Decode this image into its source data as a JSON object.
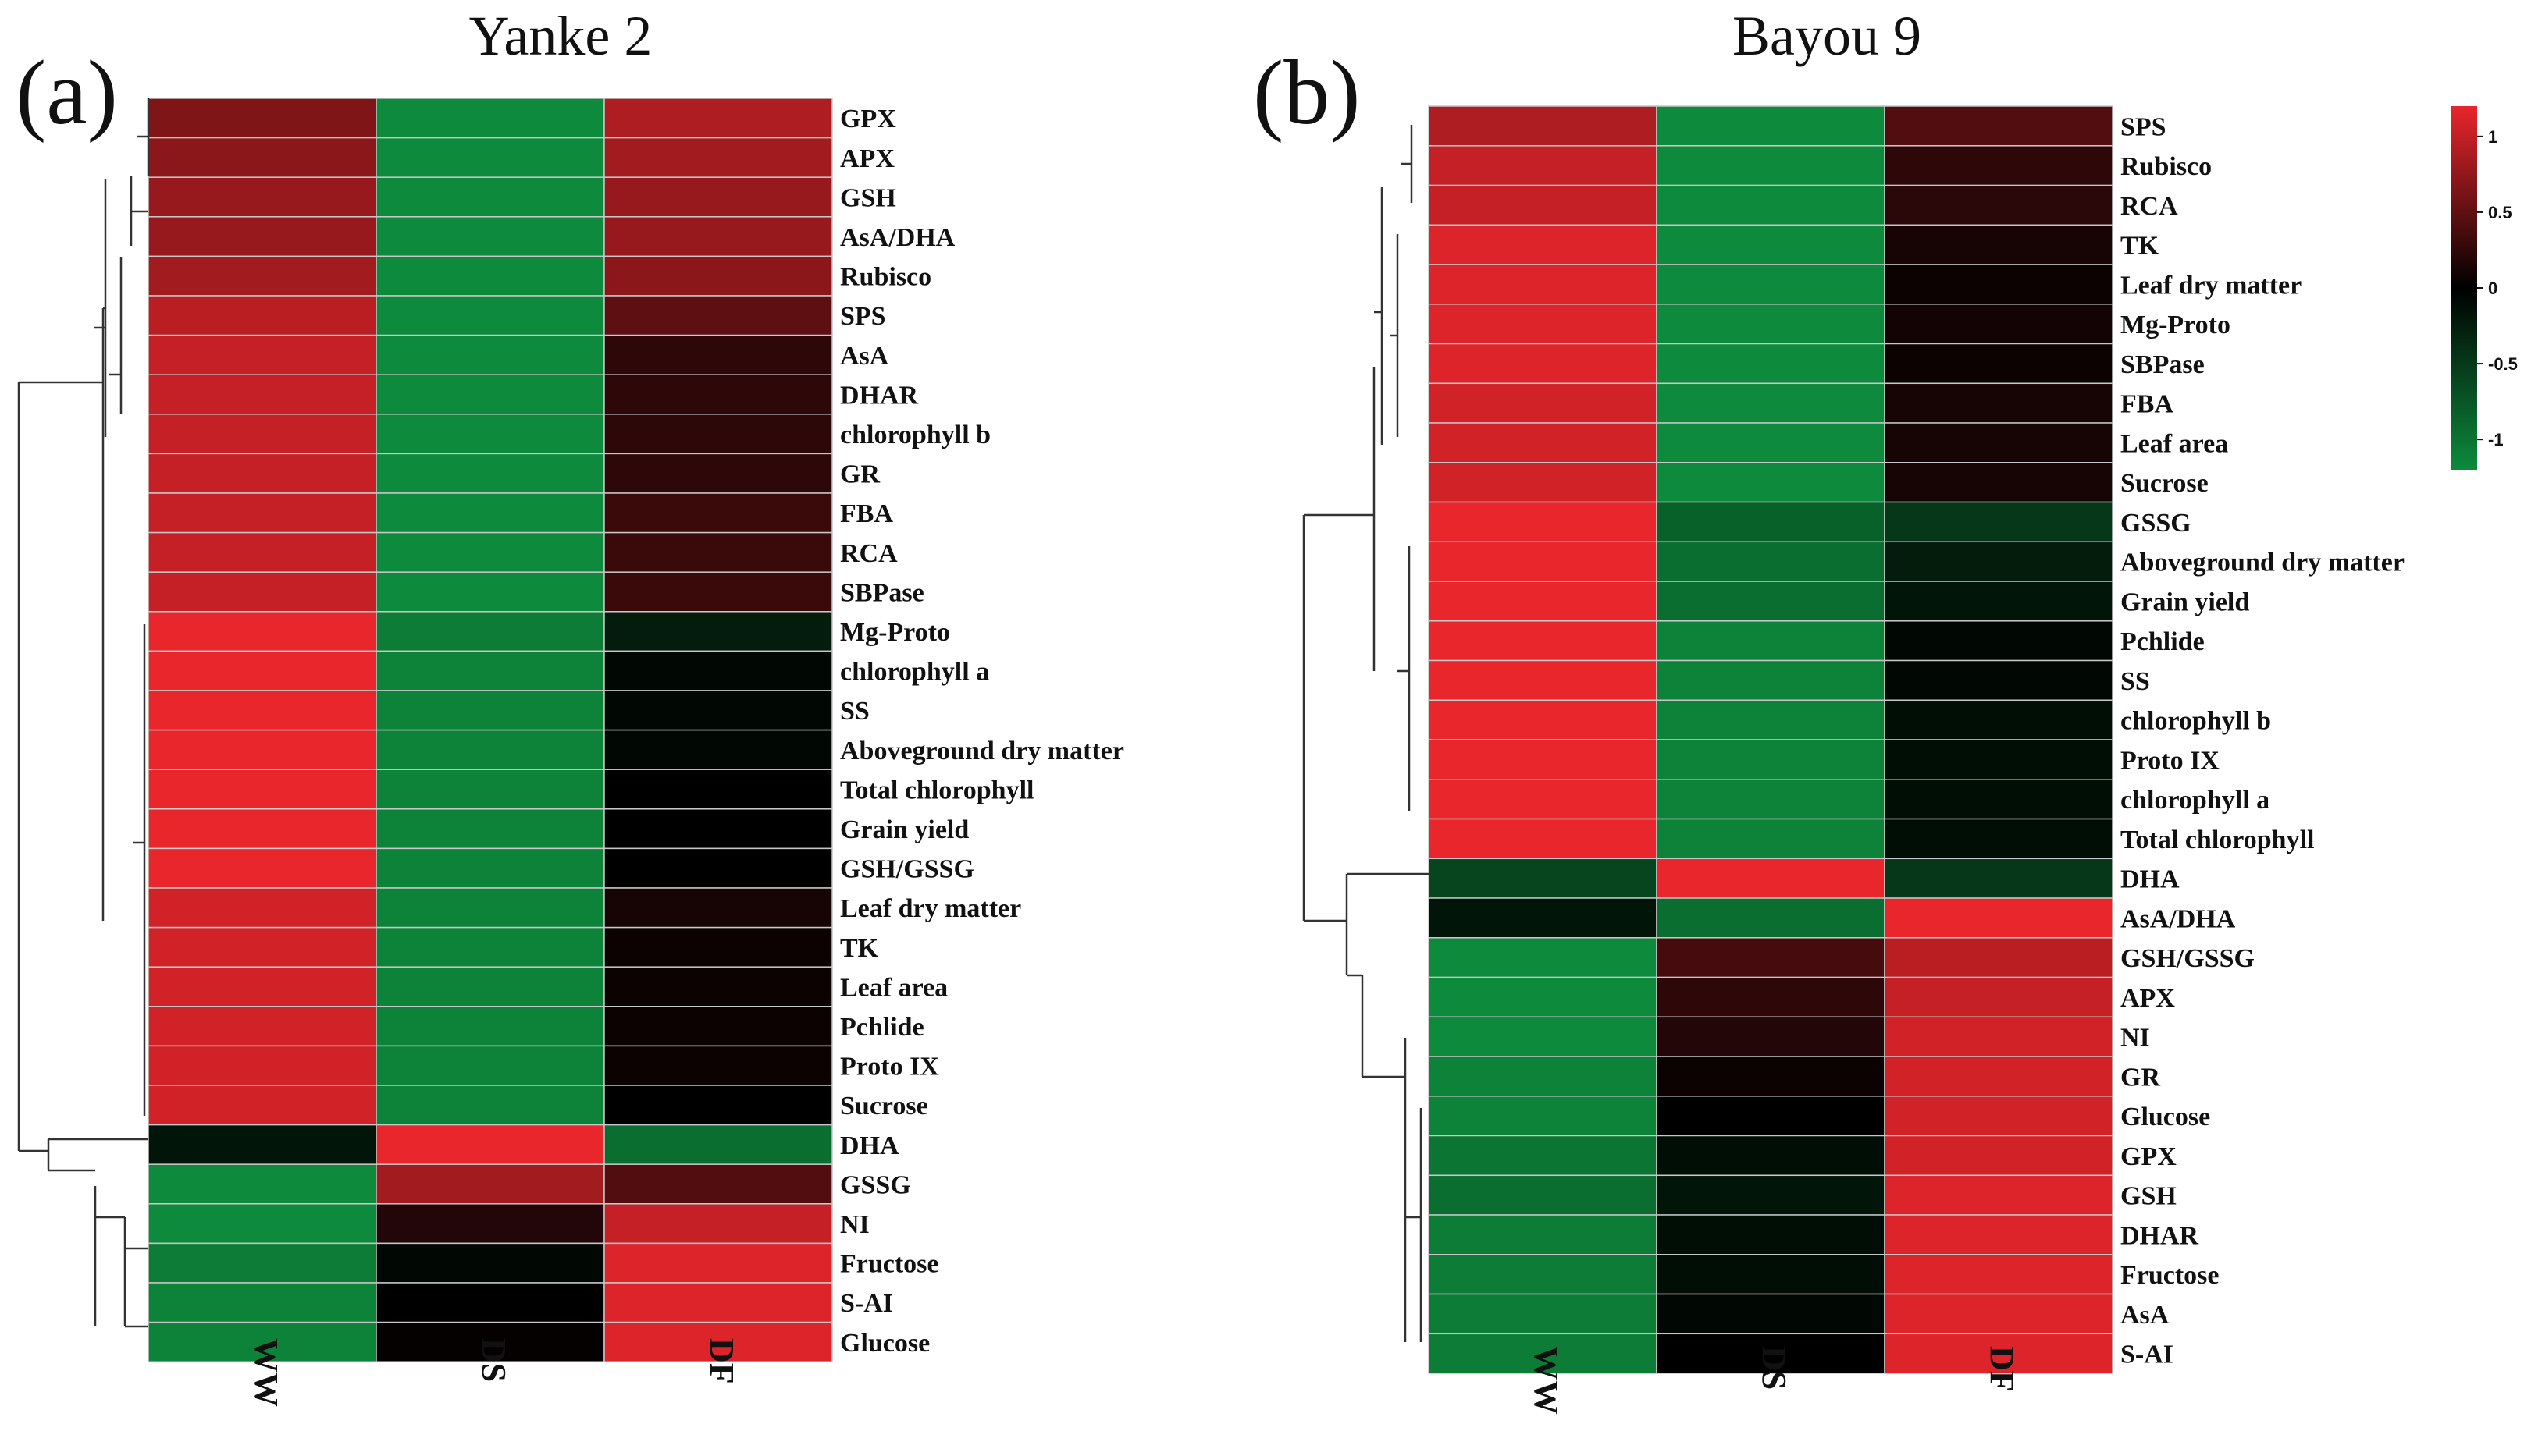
{
  "chart_data": [
    {
      "type": "heatmap",
      "panel_label": "(a)",
      "title": "Yanke 2",
      "columns": [
        "WW",
        "DS",
        "DF"
      ],
      "rows": [
        "GPX",
        "APX",
        "GSH",
        "AsA/DHA",
        "Rubisco",
        "SPS",
        "AsA",
        "DHAR",
        "chlorophyll b",
        "GR",
        "FBA",
        "RCA",
        "SBPase",
        "Mg-Proto",
        "chlorophyll a",
        "SS",
        "Aboveground dry matter",
        "Total chlorophyll",
        "Grain yield",
        "GSH/GSSG",
        "Leaf dry matter",
        "TK",
        "Leaf area",
        "Pchlide",
        "Proto IX",
        "Sucrose",
        "DHA",
        "GSSG",
        "NI",
        "Fructose",
        "S-AI",
        "Glucose"
      ],
      "values": [
        [
          0.55,
          -1.0,
          0.75
        ],
        [
          0.6,
          -1.0,
          0.7
        ],
        [
          0.65,
          -1.0,
          0.65
        ],
        [
          0.65,
          -1.0,
          0.65
        ],
        [
          0.7,
          -1.0,
          0.6
        ],
        [
          0.8,
          -1.0,
          0.4
        ],
        [
          0.85,
          -1.0,
          0.2
        ],
        [
          0.85,
          -1.0,
          0.2
        ],
        [
          0.85,
          -1.0,
          0.2
        ],
        [
          0.85,
          -1.0,
          0.2
        ],
        [
          0.85,
          -1.0,
          0.25
        ],
        [
          0.85,
          -1.0,
          0.25
        ],
        [
          0.85,
          -1.0,
          0.25
        ],
        [
          1.0,
          -0.9,
          -0.2
        ],
        [
          1.0,
          -0.95,
          -0.05
        ],
        [
          1.0,
          -0.95,
          -0.05
        ],
        [
          1.0,
          -0.95,
          -0.05
        ],
        [
          1.0,
          -0.95,
          0.0
        ],
        [
          1.0,
          -0.95,
          0.0
        ],
        [
          1.0,
          -0.95,
          0.0
        ],
        [
          0.9,
          -0.95,
          0.1
        ],
        [
          0.9,
          -0.95,
          0.05
        ],
        [
          0.9,
          -0.95,
          0.05
        ],
        [
          0.9,
          -0.95,
          0.05
        ],
        [
          0.9,
          -0.95,
          0.05
        ],
        [
          0.9,
          -0.95,
          0.0
        ],
        [
          -0.15,
          1.0,
          -0.8
        ],
        [
          -1.0,
          0.7,
          0.35
        ],
        [
          -1.0,
          0.15,
          0.85
        ],
        [
          -0.9,
          -0.05,
          0.95
        ],
        [
          -0.95,
          0.0,
          0.95
        ],
        [
          -0.95,
          0.02,
          0.95
        ]
      ]
    },
    {
      "type": "heatmap",
      "panel_label": "(b)",
      "title": "Bayou 9",
      "columns": [
        "WW",
        "DS",
        "DF"
      ],
      "rows": [
        "SPS",
        "Rubisco",
        "RCA",
        "TK",
        "Leaf dry matter",
        "Mg-Proto",
        "SBPase",
        "FBA",
        "Leaf area",
        "Sucrose",
        "GSSG",
        "Aboveground dry matter",
        "Grain yield",
        "Pchlide",
        "SS",
        "chlorophyll b",
        "Proto IX",
        "chlorophyll a",
        "Total chlorophyll",
        "DHA",
        "AsA/DHA",
        "GSH/GSSG",
        "APX",
        "NI",
        "GR",
        "Glucose",
        "GPX",
        "GSH",
        "DHAR",
        "Fructose",
        "AsA",
        "S-AI"
      ],
      "values": [
        [
          0.75,
          -1.0,
          0.35
        ],
        [
          0.85,
          -1.0,
          0.2
        ],
        [
          0.85,
          -1.0,
          0.18
        ],
        [
          0.95,
          -1.0,
          0.1
        ],
        [
          0.95,
          -1.0,
          0.05
        ],
        [
          0.95,
          -1.0,
          0.08
        ],
        [
          0.95,
          -1.0,
          0.05
        ],
        [
          0.9,
          -1.0,
          0.1
        ],
        [
          0.9,
          -1.0,
          0.1
        ],
        [
          0.9,
          -1.0,
          0.1
        ],
        [
          1.0,
          -0.7,
          -0.4
        ],
        [
          1.0,
          -0.8,
          -0.2
        ],
        [
          1.0,
          -0.8,
          -0.15
        ],
        [
          1.0,
          -0.95,
          -0.05
        ],
        [
          1.0,
          -0.95,
          -0.05
        ],
        [
          1.0,
          -0.95,
          -0.1
        ],
        [
          1.0,
          -0.95,
          -0.1
        ],
        [
          1.0,
          -0.95,
          -0.1
        ],
        [
          1.0,
          -0.95,
          -0.1
        ],
        [
          -0.5,
          1.0,
          -0.4
        ],
        [
          -0.15,
          -0.8,
          1.0
        ],
        [
          -1.0,
          0.3,
          0.8
        ],
        [
          -1.0,
          0.2,
          0.85
        ],
        [
          -1.0,
          0.15,
          0.9
        ],
        [
          -0.95,
          0.05,
          0.9
        ],
        [
          -0.95,
          0.0,
          0.9
        ],
        [
          -0.85,
          -0.1,
          0.9
        ],
        [
          -0.8,
          -0.15,
          0.95
        ],
        [
          -0.9,
          -0.1,
          0.95
        ],
        [
          -0.9,
          -0.1,
          0.95
        ],
        [
          -0.9,
          -0.05,
          0.95
        ],
        [
          -0.9,
          0.0,
          0.95
        ]
      ],
      "colorbar": {
        "ticks": [
          "1",
          "0.5",
          "0",
          "-0.5",
          "-1"
        ],
        "tick_values": [
          1,
          0.5,
          0,
          -0.5,
          -1
        ],
        "range": [
          -1.2,
          1.2
        ]
      }
    }
  ],
  "colors": {
    "high": "#e8262c",
    "mid": "#000000",
    "low": "#0d8a3c",
    "grid": "#c8c8c8",
    "tree": "#333333"
  }
}
